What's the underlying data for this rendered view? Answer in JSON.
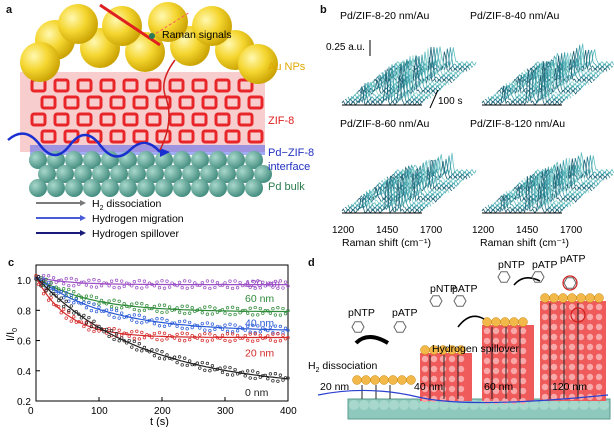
{
  "panel_a": {
    "label": "a",
    "raman_signals": "Raman signals",
    "au_nps": "Au NPs",
    "zif8": "ZIF-8",
    "interface_line1": "Pd−ZIF-8",
    "interface_line2": "interface",
    "pd_bulk": "Pd bulk",
    "legend": [
      {
        "pre": "H",
        "sub": "2",
        "post": " dissociation",
        "color": "#7a7a7a"
      },
      {
        "pre": "Hydrogen migration",
        "sub": "",
        "post": "",
        "color": "#4a5bd8"
      },
      {
        "pre": "Hydrogen spillover",
        "sub": "",
        "post": "",
        "color": "#1a1a7a"
      }
    ]
  },
  "panel_b": {
    "label": "b",
    "titles": [
      "Pd/ZIF-8-20 nm/Au",
      "Pd/ZIF-8-40 nm/Au",
      "Pd/ZIF-8-60 nm/Au",
      "Pd/ZIF-8-120 nm/Au"
    ],
    "scale_label": "0.25 a.u.",
    "time_label": "100 s",
    "ticks": [
      "1200",
      "1450",
      "1700"
    ],
    "xlabel": "Raman shift (cm⁻¹)"
  },
  "panel_c": {
    "label": "c",
    "chart_data": {
      "type": "scatter",
      "title": "",
      "xlabel": "t (s)",
      "ylabel": "I/I0",
      "xlim": [
        0,
        400
      ],
      "ylim": [
        0.2,
        1.1
      ],
      "xticks": [
        "0",
        "100",
        "200",
        "300",
        "400"
      ],
      "yticks": [
        "0.2",
        "0.4",
        "0.6",
        "0.8",
        "1.0"
      ],
      "series": [
        {
          "name": "120 nm",
          "color": "#9b4fc4",
          "fit_end": 0.97,
          "k": 0.02
        },
        {
          "name": "60 nm",
          "color": "#2e8b3a",
          "fit_end": 0.79,
          "k": 0.012
        },
        {
          "name": "40 nm",
          "color": "#2a5bd6",
          "fit_end": 0.66,
          "k": 0.009
        },
        {
          "name": "20 nm",
          "color": "#d42a2a",
          "fit_end": 0.62,
          "k": 0.02
        },
        {
          "name": "0 nm",
          "color": "#222222",
          "fit_end": 0.28,
          "k": 0.01
        }
      ]
    }
  },
  "panel_d": {
    "label": "d",
    "h2_dissociation_pre": "H",
    "h2_dissociation_sub": "2",
    "h2_dissociation_post": " dissociation",
    "hydrogen_spillover": "Hydrogen spillover",
    "pntp": "pNTP",
    "patp": "pATP",
    "thicknesses": [
      "20 nm",
      "40 nm",
      "60 nm",
      "120 nm"
    ]
  }
}
